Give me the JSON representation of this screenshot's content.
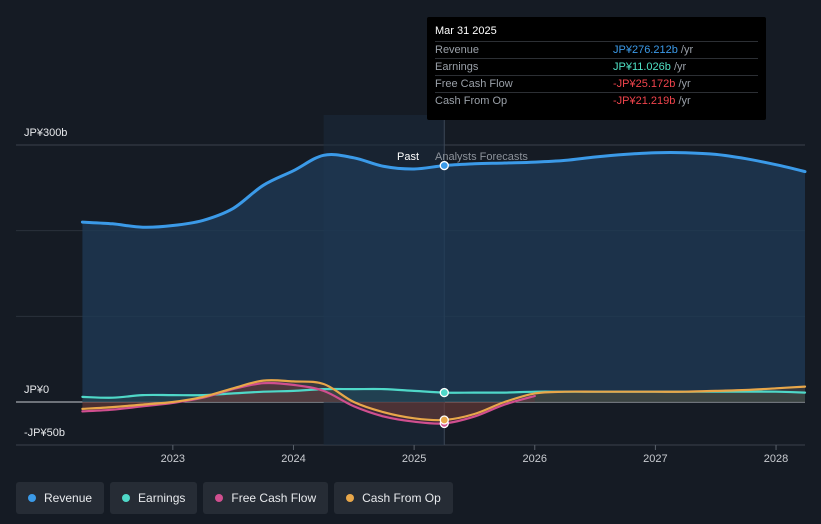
{
  "chart_data": {
    "type": "line",
    "y_axis_labels": [
      "JP¥300b",
      "JP¥0",
      "-JP¥50b"
    ],
    "x_tick_labels": [
      "2023",
      "2024",
      "2025",
      "2026",
      "2027",
      "2028"
    ],
    "x_ticks": [
      2023,
      2024,
      2025,
      2026,
      2027,
      2028
    ],
    "ylim": [
      -50,
      300
    ],
    "xlim": [
      2021.7,
      2028.24
    ],
    "past_label": "Past",
    "forecast_label": "Analysts Forecasts",
    "divider_x": 2025.25,
    "highlight_start_x": 2024.25,
    "series": [
      {
        "name": "Revenue",
        "color": "#3b9ae8",
        "x": [
          2022.25,
          2022.5,
          2022.75,
          2023.0,
          2023.25,
          2023.5,
          2023.75,
          2024.0,
          2024.25,
          2024.5,
          2024.75,
          2025.0,
          2025.25,
          2025.5,
          2025.75,
          2026.0,
          2026.25,
          2026.5,
          2026.75,
          2027.0,
          2027.25,
          2027.5,
          2027.75,
          2028.0,
          2028.24
        ],
        "y": [
          210,
          208,
          204,
          206,
          212,
          226,
          253,
          270,
          288,
          285,
          275,
          272,
          276,
          278,
          279,
          280,
          282,
          286,
          289,
          291,
          291,
          289,
          284,
          277,
          269
        ]
      },
      {
        "name": "Earnings",
        "color": "#4fd8c8",
        "x": [
          2022.25,
          2022.5,
          2022.75,
          2023.0,
          2023.25,
          2023.5,
          2023.75,
          2024.0,
          2024.25,
          2024.5,
          2024.75,
          2025.0,
          2025.25,
          2025.5,
          2025.75,
          2026.0,
          2026.25,
          2026.5,
          2026.75,
          2027.0,
          2027.25,
          2027.5,
          2027.75,
          2028.0,
          2028.24
        ],
        "y": [
          6,
          5,
          8,
          8,
          8,
          10,
          12,
          13,
          15,
          15,
          15,
          13,
          11,
          11,
          11,
          12,
          12,
          12,
          12,
          12,
          12,
          12,
          12,
          12,
          11
        ]
      },
      {
        "name": "Free Cash Flow",
        "color": "#d04f8f",
        "x": [
          2022.25,
          2022.5,
          2022.75,
          2023.0,
          2023.25,
          2023.5,
          2023.75,
          2024.0,
          2024.25,
          2024.5,
          2024.75,
          2025.0,
          2025.25,
          2025.5,
          2025.75,
          2026.0
        ],
        "y": [
          -11,
          -9,
          -5,
          -1,
          5,
          15,
          22,
          20,
          13,
          -5,
          -17,
          -23,
          -25,
          -17,
          -3,
          7
        ]
      },
      {
        "name": "Cash From Op",
        "color": "#e8a74a",
        "x": [
          2022.25,
          2022.5,
          2022.75,
          2023.0,
          2023.25,
          2023.5,
          2023.75,
          2024.0,
          2024.25,
          2024.5,
          2024.75,
          2025.0,
          2025.25,
          2025.5,
          2025.75,
          2026.0,
          2026.25,
          2026.5,
          2026.75,
          2027.0,
          2027.25,
          2027.5,
          2027.75,
          2028.0,
          2028.24
        ],
        "y": [
          -8,
          -6,
          -3,
          0,
          6,
          16,
          25,
          24,
          21,
          0,
          -12,
          -19,
          -21,
          -14,
          0,
          10,
          12,
          12,
          12,
          12,
          12,
          13,
          14,
          16,
          18
        ]
      }
    ],
    "grid": true,
    "legend_position": "bottom-left"
  },
  "tooltip": {
    "date": "Mar 31 2025",
    "unit": " /yr",
    "rows": [
      {
        "label": "Revenue",
        "value": "JP¥276.212b",
        "color": "#3b9ae8"
      },
      {
        "label": "Earnings",
        "value": "JP¥11.026b",
        "color": "#4fe0c4"
      },
      {
        "label": "Free Cash Flow",
        "value": "-JP¥25.172b",
        "color": "#f0444c"
      },
      {
        "label": "Cash From Op",
        "value": "-JP¥21.219b",
        "color": "#f0444c"
      }
    ]
  },
  "legend": [
    {
      "label": "Revenue",
      "color": "#3b9ae8"
    },
    {
      "label": "Earnings",
      "color": "#4fd8c8"
    },
    {
      "label": "Free Cash Flow",
      "color": "#d04f8f"
    },
    {
      "label": "Cash From Op",
      "color": "#e8a74a"
    }
  ]
}
